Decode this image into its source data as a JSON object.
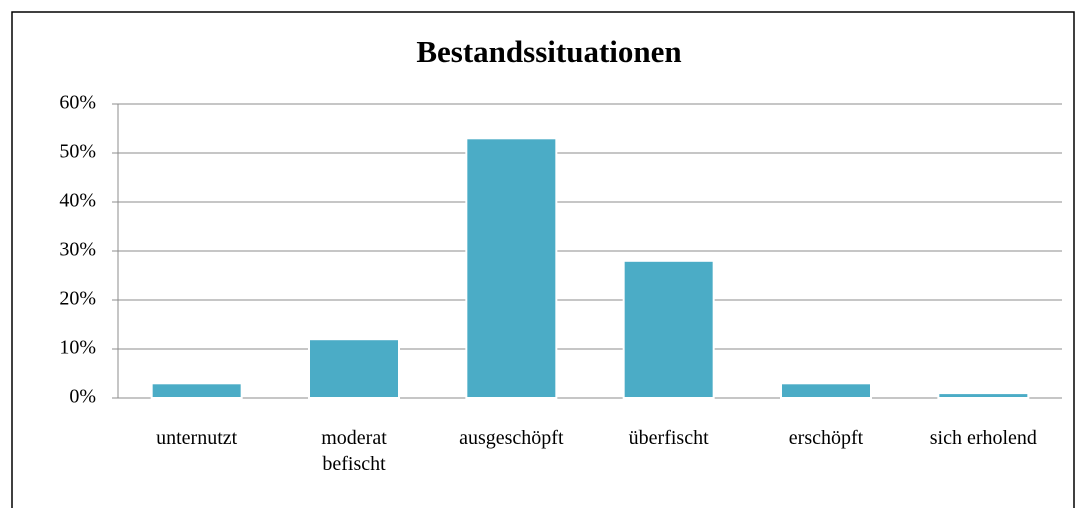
{
  "chart_data": {
    "type": "bar",
    "title": "Bestandssituationen",
    "categories": [
      "unternutzt",
      "moderat befischt",
      "ausgeschöpft",
      "überfischt",
      "erschöpft",
      "sich erholend"
    ],
    "values": [
      3,
      12,
      53,
      28,
      3,
      1
    ],
    "color": "#4bacc6",
    "ylim": [
      0,
      60
    ],
    "yticks": [
      {
        "value": 0,
        "label": "0%"
      },
      {
        "value": 10,
        "label": "10%"
      },
      {
        "value": 20,
        "label": "20%"
      },
      {
        "value": 30,
        "label": "30%"
      },
      {
        "value": 40,
        "label": "40%"
      },
      {
        "value": 50,
        "label": "50%"
      },
      {
        "value": 60,
        "label": "60%"
      }
    ],
    "grid": true
  }
}
